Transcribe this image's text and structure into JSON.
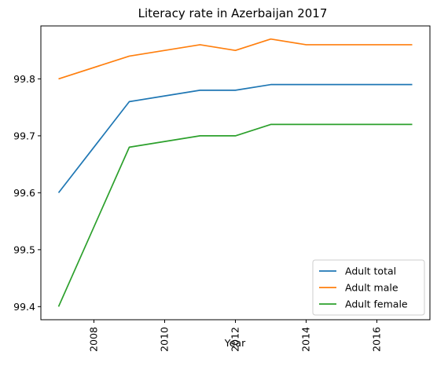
{
  "chart_data": {
    "type": "line",
    "title": "Literacy rate in Azerbaijan 2017",
    "xlabel": "Year",
    "ylabel": "",
    "x": [
      2007,
      2009,
      2010,
      2011,
      2012,
      2013,
      2014,
      2015,
      2016,
      2017
    ],
    "series": [
      {
        "name": "Adult total",
        "color": "#1f77b4",
        "values": [
          99.6,
          99.76,
          99.77,
          99.78,
          99.78,
          99.79,
          99.79,
          99.79,
          99.79,
          99.79
        ]
      },
      {
        "name": "Adult male",
        "color": "#ff7f0e",
        "values": [
          99.8,
          99.84,
          99.85,
          99.86,
          99.85,
          99.87,
          99.86,
          99.86,
          99.86,
          99.86
        ]
      },
      {
        "name": "Adult female",
        "color": "#2ca02c",
        "values": [
          99.4,
          99.68,
          99.69,
          99.7,
          99.7,
          99.72,
          99.72,
          99.72,
          99.72,
          99.72
        ]
      }
    ],
    "xlim": [
      2006.5,
      2017.5
    ],
    "ylim": [
      99.377,
      99.893
    ],
    "xticks": [
      "2008",
      "2010",
      "2012",
      "2014",
      "2016"
    ],
    "yticks": [
      "99.4",
      "99.5",
      "99.6",
      "99.7",
      "99.8"
    ],
    "xtick_rotation": "vertical",
    "grid": false,
    "legend_position": "lower-right"
  }
}
